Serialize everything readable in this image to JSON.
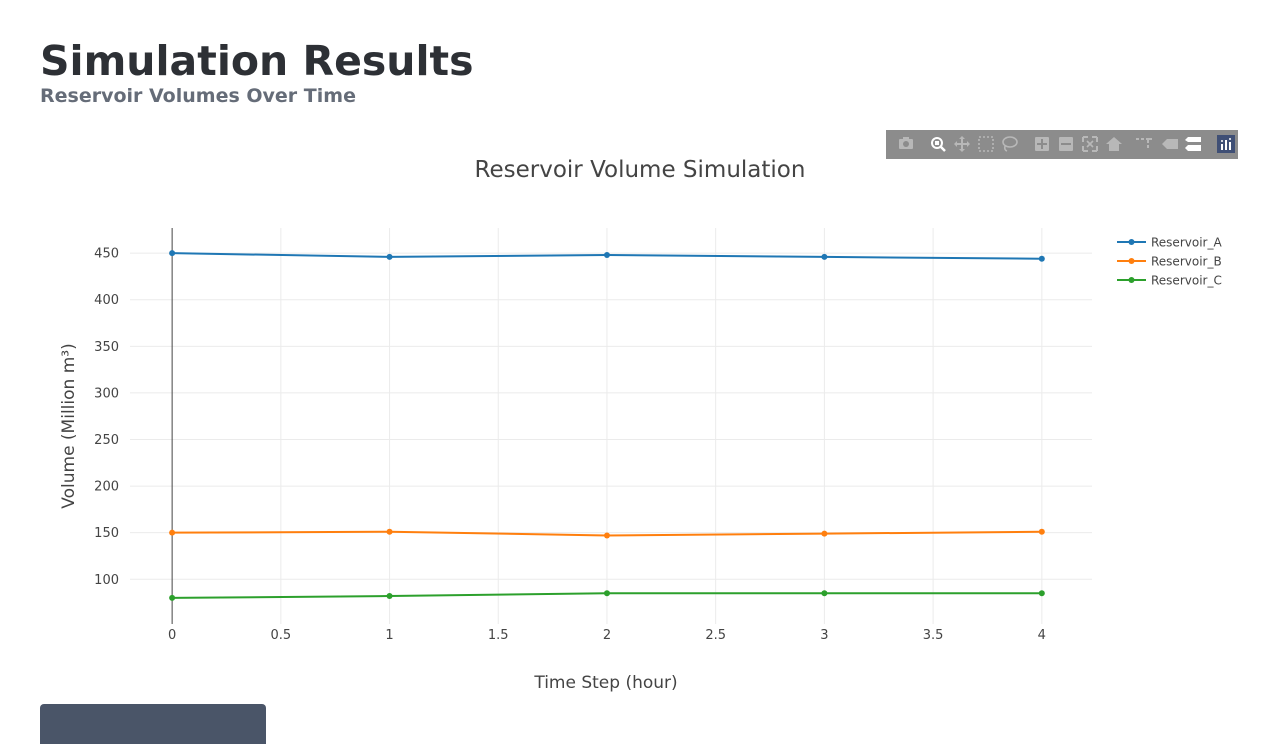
{
  "header": {
    "title": "Simulation Results",
    "subtitle": "Reservoir Volumes Over Time"
  },
  "modebar": {
    "icons": [
      "camera-icon",
      "zoom-icon",
      "pan-icon",
      "box-select-icon",
      "lasso-select-icon",
      "zoom-in-icon",
      "zoom-out-icon",
      "autoscale-icon",
      "reset-axes-icon",
      "spike-lines-icon",
      "hover-closest-icon",
      "hover-compare-icon",
      "plotly-logo-icon"
    ],
    "active_icon": "zoom-icon",
    "background": "#8c8c8c"
  },
  "bottom_button": {
    "label": ""
  },
  "chart_data": {
    "type": "line",
    "title": "Reservoir Volume Simulation",
    "xlabel": "Time Step (hour)",
    "ylabel": "Volume (Million m³)",
    "x": [
      0,
      1,
      2,
      3,
      4
    ],
    "xlim": [
      -0.6077,
      4.2308
    ],
    "ylim": [
      52,
      477
    ],
    "x_ticks": [
      "0",
      "0.5",
      "1",
      "1.5",
      "2",
      "2.5",
      "3",
      "3.5",
      "4"
    ],
    "y_ticks": [
      "100",
      "150",
      "200",
      "250",
      "300",
      "350",
      "400",
      "450"
    ],
    "grid": true,
    "legend": "top-right",
    "series": [
      {
        "name": "Reservoir_A",
        "color": "#1f77b4",
        "values": [
          450,
          446,
          448,
          446,
          444
        ]
      },
      {
        "name": "Reservoir_B",
        "color": "#ff7f0e",
        "values": [
          150,
          151,
          147,
          149,
          151
        ]
      },
      {
        "name": "Reservoir_C",
        "color": "#2ca02c",
        "values": [
          80,
          82,
          85,
          85,
          85
        ]
      }
    ]
  }
}
